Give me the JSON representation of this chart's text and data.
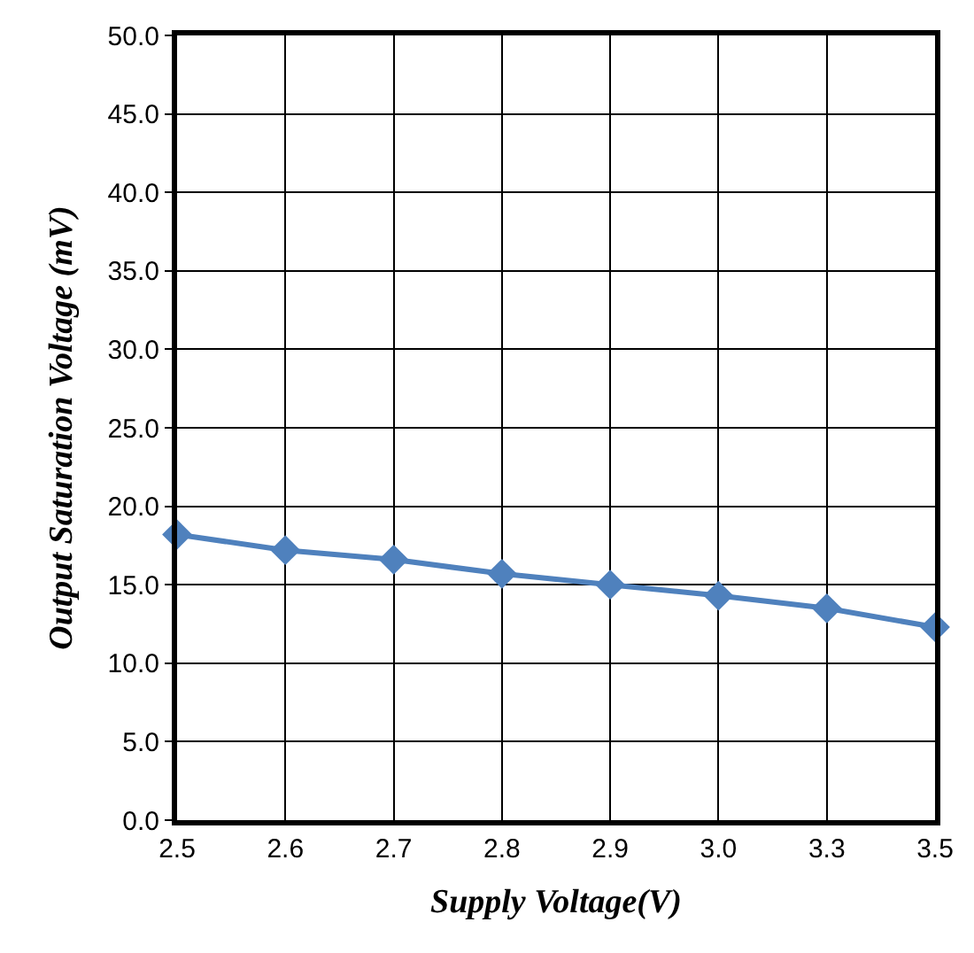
{
  "chart_data": {
    "type": "line",
    "xlabel": "Supply Voltage(V)",
    "ylabel": "Output Saturation Voltage (mV)",
    "categories": [
      "2.5",
      "2.6",
      "2.7",
      "2.8",
      "2.9",
      "3.0",
      "3.3",
      "3.5"
    ],
    "series": [
      {
        "color": "#4f81bd",
        "values": [
          18.2,
          17.2,
          16.6,
          15.7,
          15.0,
          14.3,
          13.5,
          12.3
        ]
      }
    ],
    "ylim": [
      0,
      50
    ],
    "yticks": [
      {
        "value": 0,
        "label": "0.0"
      },
      {
        "value": 5,
        "label": "5.0"
      },
      {
        "value": 10,
        "label": "10.0"
      },
      {
        "value": 15,
        "label": "15.0"
      },
      {
        "value": 20,
        "label": "20.0"
      },
      {
        "value": 25,
        "label": "25.0"
      },
      {
        "value": 30,
        "label": "30.0"
      },
      {
        "value": 35,
        "label": "35.0"
      },
      {
        "value": 40,
        "label": "40.0"
      },
      {
        "value": 45,
        "label": "45.0"
      },
      {
        "value": 50,
        "label": "50.0"
      }
    ],
    "grid": true,
    "marker": "diamond",
    "line_style": "solid",
    "legend": false
  }
}
